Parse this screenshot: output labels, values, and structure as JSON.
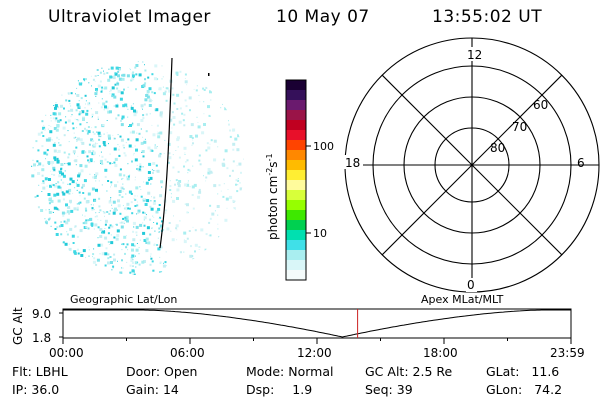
{
  "header": {
    "title": "Ultraviolet Imager",
    "date": "10 May 07",
    "time": "13:55:02 UT"
  },
  "colorbar": {
    "label_main": "photon cm",
    "label_sup1": "-2",
    "label_mid": "s",
    "label_sup2": "-1",
    "ticks": [
      "100",
      "10"
    ],
    "colors": [
      "#1a0033",
      "#35105a",
      "#6a1a6e",
      "#9a1448",
      "#c00020",
      "#e8102a",
      "#ff4400",
      "#ff8800",
      "#ffbb00",
      "#ffee33",
      "#fffb9c",
      "#d8ff3a",
      "#96ff00",
      "#3ee800",
      "#00d050",
      "#00e0b0",
      "#40e0e8",
      "#a9eef0",
      "#d9f6f8",
      "#f4fbfb"
    ]
  },
  "polar_plot": {
    "latitude_labels": [
      "60",
      "70",
      "80"
    ],
    "mlt_labels": {
      "top": "12",
      "left": "18",
      "right": "6",
      "bottom": "0"
    }
  },
  "orbit_panel": {
    "y_axis_title": "GC Alt",
    "y_ticks": [
      "9.0",
      "1.8"
    ],
    "left_caption": "Geographic Lat/Lon",
    "right_caption": "Apex MLat/MLT",
    "x_ticks": [
      "00:00",
      "06:00",
      "12:00",
      "18:00",
      "23:59"
    ],
    "current_time_hours": 13.917,
    "marker_color": "#cc2222"
  },
  "info": {
    "row1": [
      {
        "label": "Flt:",
        "value": "LBHL"
      },
      {
        "label": "Door:",
        "value": "Open"
      },
      {
        "label": "Mode:",
        "value": "Normal"
      },
      {
        "label": "GC Alt:",
        "value": "2.5 Re"
      },
      {
        "label": "GLat:",
        "value": "11.6"
      }
    ],
    "row2": [
      {
        "label": "IP:",
        "value": "36.0"
      },
      {
        "label": "Gain:",
        "value": "14"
      },
      {
        "label": "Dsp:",
        "value": "1.9"
      },
      {
        "label": "Seq:",
        "value": "39"
      },
      {
        "label": "GLon:",
        "value": "74.2"
      }
    ]
  }
}
